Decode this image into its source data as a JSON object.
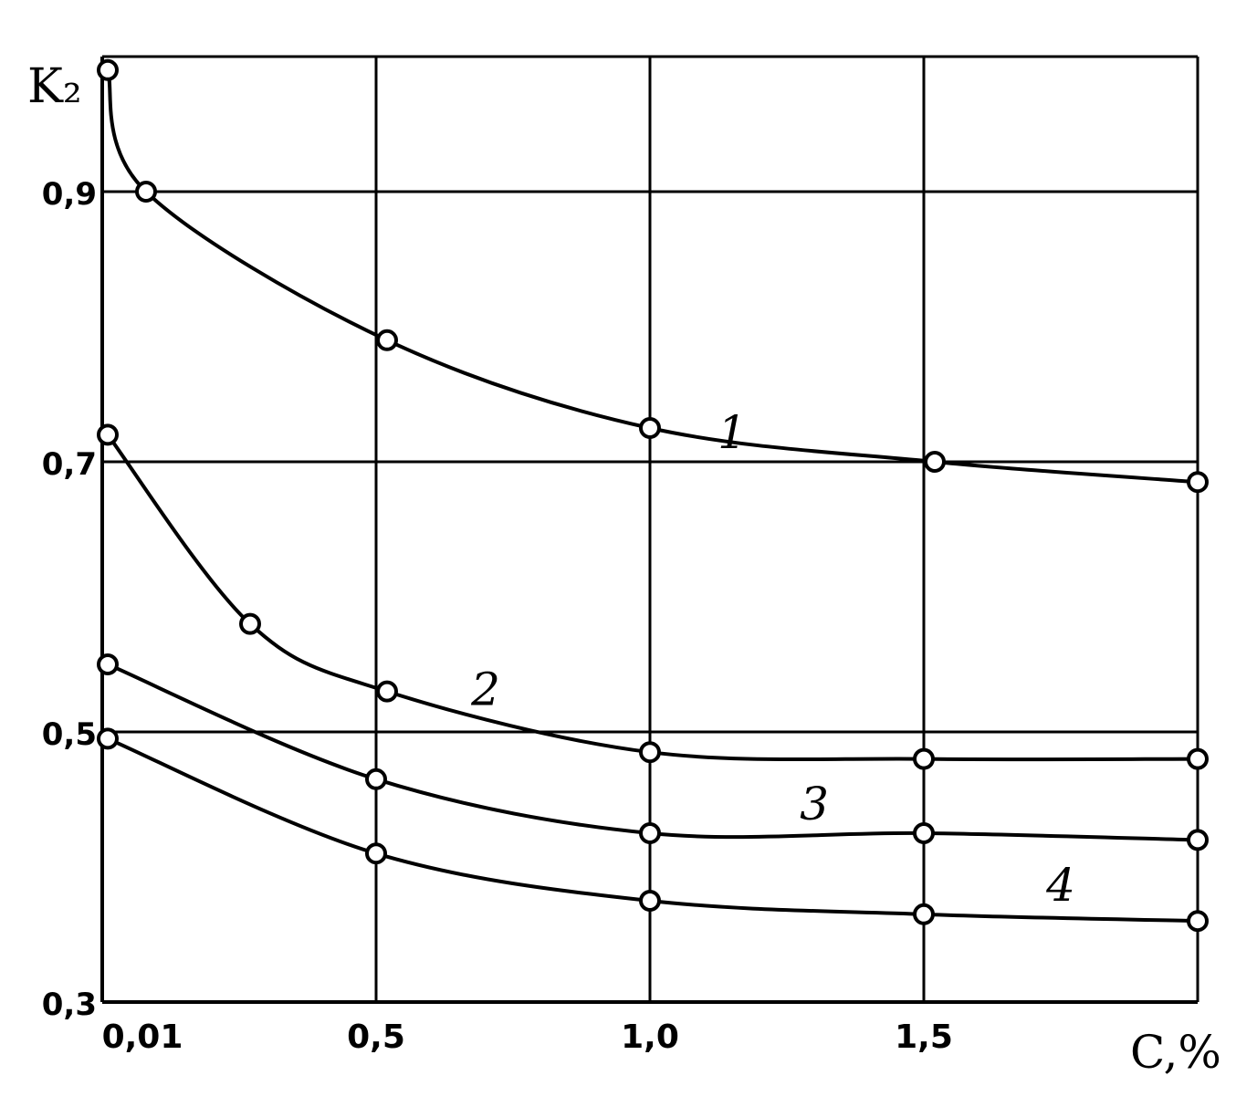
{
  "chart_data": {
    "type": "line",
    "title": "",
    "xlabel": "C,%",
    "ylabel": "K₂",
    "x_tick_labels": [
      "0,01",
      "0,5",
      "1,0",
      "1,5"
    ],
    "y_tick_labels": [
      "0,3",
      "0,5",
      "0,7",
      "0,9"
    ],
    "xlim": [
      0.0,
      2.0
    ],
    "ylim": [
      0.3,
      1.0
    ],
    "grid": true,
    "legend": "none",
    "series": [
      {
        "name": "1",
        "points": [
          [
            0.01,
            0.99
          ],
          [
            0.08,
            0.9
          ],
          [
            0.52,
            0.79
          ],
          [
            1.0,
            0.725
          ],
          [
            1.52,
            0.7
          ],
          [
            2.0,
            0.685
          ]
        ],
        "label_at": [
          1.15,
          0.71
        ]
      },
      {
        "name": "2",
        "points": [
          [
            0.01,
            0.72
          ],
          [
            0.27,
            0.58
          ],
          [
            0.52,
            0.53
          ],
          [
            1.0,
            0.485
          ],
          [
            1.5,
            0.48
          ],
          [
            2.0,
            0.48
          ]
        ],
        "label_at": [
          0.7,
          0.52
        ]
      },
      {
        "name": "3",
        "points": [
          [
            0.01,
            0.55
          ],
          [
            0.5,
            0.465
          ],
          [
            1.0,
            0.425
          ],
          [
            1.5,
            0.425
          ],
          [
            2.0,
            0.42
          ]
        ],
        "label_at": [
          1.3,
          0.435
        ]
      },
      {
        "name": "4",
        "points": [
          [
            0.01,
            0.495
          ],
          [
            0.5,
            0.41
          ],
          [
            1.0,
            0.375
          ],
          [
            1.5,
            0.365
          ],
          [
            2.0,
            0.36
          ]
        ],
        "label_at": [
          1.75,
          0.375
        ]
      }
    ]
  }
}
